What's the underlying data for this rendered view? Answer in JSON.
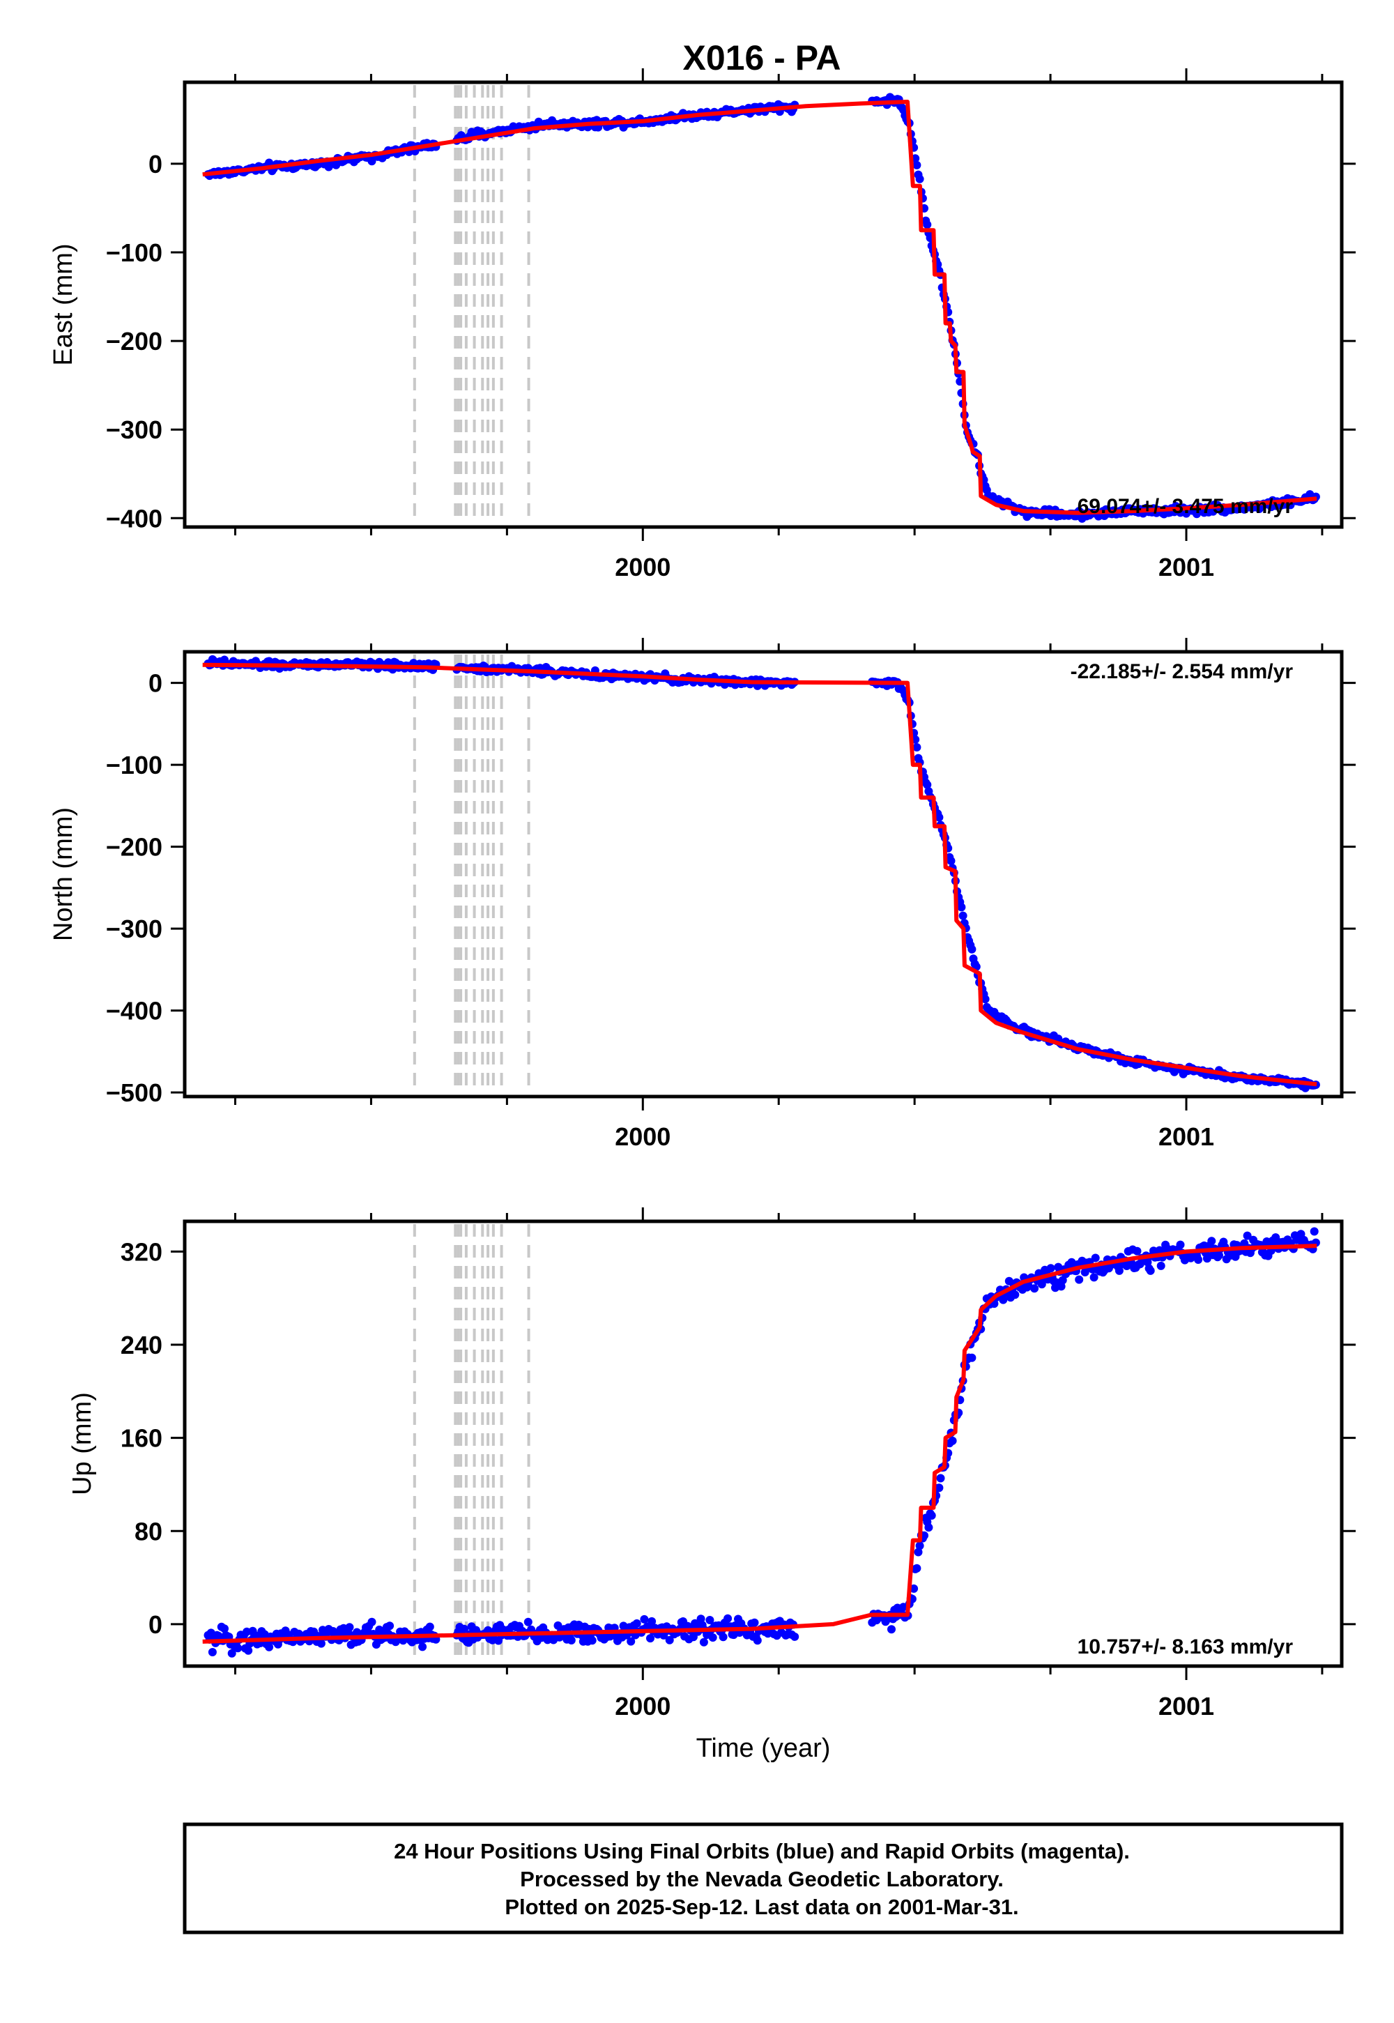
{
  "title": "X016 - PA",
  "footer": {
    "line1": "24 Hour Positions Using Final Orbits (blue) and Rapid Orbits (magenta).",
    "line2": "Processed by the Nevada Geodetic Laboratory.",
    "line3": "Plotted on 2025-Sep-12. Last data on 2001-Mar-31."
  },
  "colors": {
    "final_orbit_points": "#0000ff",
    "model_fit": "#ff0000",
    "event_lines": "#c8c8c8"
  },
  "chart_data": [
    {
      "type": "scatter",
      "component": "east",
      "ylabel": "East (mm)",
      "xlabel": "",
      "xlim": [
        1999.157,
        2001.286
      ],
      "ylim": [
        -410,
        92
      ],
      "yticks": [
        0,
        -100,
        -200,
        -300,
        -400
      ],
      "xtick_labels": [
        "2000",
        "2001"
      ],
      "rate_text": "69.074+/- 3.475 mm/yr",
      "event_lines_x": [
        1999.58,
        1999.655,
        1999.66,
        1999.665,
        1999.675,
        1999.69,
        1999.705,
        1999.715,
        1999.725,
        1999.74,
        1999.79
      ],
      "series": [
        {
          "name": "Final Orbits",
          "gaps": [
            [
              1999.62,
              1999.655
            ],
            [
              2000.28,
              2000.42
            ]
          ],
          "points": [
            [
              1999.2,
              -12
            ],
            [
              1999.3,
              -5
            ],
            [
              1999.4,
              0
            ],
            [
              1999.5,
              8
            ],
            [
              1999.6,
              20
            ],
            [
              1999.7,
              33
            ],
            [
              1999.75,
              38
            ],
            [
              1999.83,
              45
            ],
            [
              1999.9,
              45
            ],
            [
              2000.0,
              48
            ],
            [
              2000.1,
              55
            ],
            [
              2000.2,
              61
            ],
            [
              2000.28,
              64
            ],
            [
              2000.42,
              70
            ],
            [
              2000.47,
              72
            ],
            [
              2000.49,
              45
            ],
            [
              2000.51,
              -22
            ],
            [
              2000.525,
              -75
            ],
            [
              2000.545,
              -120
            ],
            [
              2000.565,
              -180
            ],
            [
              2000.58,
              -230
            ],
            [
              2000.595,
              -300
            ],
            [
              2000.615,
              -330
            ],
            [
              2000.635,
              -375
            ],
            [
              2000.7,
              -393
            ],
            [
              2000.8,
              -396
            ],
            [
              2000.9,
              -392
            ],
            [
              2001.0,
              -391
            ],
            [
              2001.1,
              -388
            ],
            [
              2001.24,
              -378
            ]
          ]
        },
        {
          "name": "Model fit",
          "points": [
            [
              1999.19,
              -12
            ],
            [
              1999.3,
              -5
            ],
            [
              1999.4,
              3
            ],
            [
              1999.5,
              10
            ],
            [
              1999.6,
              20
            ],
            [
              1999.7,
              30
            ],
            [
              1999.8,
              40
            ],
            [
              1999.9,
              45
            ],
            [
              2000.0,
              48
            ],
            [
              2000.1,
              55
            ],
            [
              2000.2,
              60
            ],
            [
              2000.3,
              65
            ],
            [
              2000.4,
              68
            ],
            [
              2000.487,
              70
            ],
            [
              2000.497,
              -25
            ],
            [
              2000.51,
              -25
            ],
            [
              2000.512,
              -75
            ],
            [
              2000.535,
              -75
            ],
            [
              2000.537,
              -125
            ],
            [
              2000.555,
              -125
            ],
            [
              2000.557,
              -180
            ],
            [
              2000.565,
              -180
            ],
            [
              2000.567,
              -200
            ],
            [
              2000.575,
              -205
            ],
            [
              2000.577,
              -235
            ],
            [
              2000.59,
              -235
            ],
            [
              2000.592,
              -295
            ],
            [
              2000.605,
              -320
            ],
            [
              2000.607,
              -325
            ],
            [
              2000.62,
              -330
            ],
            [
              2000.622,
              -375
            ],
            [
              2000.65,
              -385
            ],
            [
              2000.7,
              -392
            ],
            [
              2000.8,
              -394
            ],
            [
              2000.9,
              -392
            ],
            [
              2001.0,
              -389
            ],
            [
              2001.1,
              -385
            ],
            [
              2001.24,
              -378
            ]
          ]
        }
      ]
    },
    {
      "type": "scatter",
      "component": "north",
      "ylabel": "North (mm)",
      "xlabel": "",
      "xlim": [
        1999.157,
        2001.286
      ],
      "ylim": [
        -505,
        38
      ],
      "yticks": [
        0,
        -100,
        -200,
        -300,
        -400,
        -500
      ],
      "xtick_labels": [
        "2000",
        "2001"
      ],
      "rate_text": "-22.185+/- 2.554 mm/yr",
      "event_lines_x": [
        1999.58,
        1999.655,
        1999.66,
        1999.665,
        1999.675,
        1999.69,
        1999.705,
        1999.715,
        1999.725,
        1999.74,
        1999.79
      ],
      "series": [
        {
          "name": "Final Orbits",
          "gaps": [
            [
              1999.62,
              1999.655
            ],
            [
              2000.28,
              2000.42
            ]
          ],
          "points": [
            [
              1999.2,
              24
            ],
            [
              1999.3,
              22
            ],
            [
              1999.4,
              22
            ],
            [
              1999.5,
              22
            ],
            [
              1999.6,
              20
            ],
            [
              1999.7,
              18
            ],
            [
              1999.8,
              15
            ],
            [
              1999.9,
              10
            ],
            [
              2000.0,
              7
            ],
            [
              2000.1,
              3
            ],
            [
              2000.2,
              1
            ],
            [
              2000.28,
              0
            ],
            [
              2000.42,
              0
            ],
            [
              2000.47,
              0
            ],
            [
              2000.49,
              -25
            ],
            [
              2000.51,
              -100
            ],
            [
              2000.53,
              -140
            ],
            [
              2000.55,
              -175
            ],
            [
              2000.57,
              -225
            ],
            [
              2000.59,
              -290
            ],
            [
              2000.61,
              -340
            ],
            [
              2000.635,
              -400
            ],
            [
              2000.7,
              -425
            ],
            [
              2000.8,
              -445
            ],
            [
              2000.9,
              -462
            ],
            [
              2001.0,
              -472
            ],
            [
              2001.1,
              -482
            ],
            [
              2001.24,
              -490
            ]
          ]
        },
        {
          "name": "Model fit",
          "points": [
            [
              1999.19,
              22
            ],
            [
              1999.4,
              21
            ],
            [
              1999.6,
              19
            ],
            [
              1999.8,
              14
            ],
            [
              2000.0,
              8
            ],
            [
              2000.1,
              4
            ],
            [
              2000.2,
              1
            ],
            [
              2000.487,
              0
            ],
            [
              2000.497,
              -100
            ],
            [
              2000.51,
              -100
            ],
            [
              2000.512,
              -140
            ],
            [
              2000.535,
              -140
            ],
            [
              2000.537,
              -175
            ],
            [
              2000.555,
              -175
            ],
            [
              2000.557,
              -225
            ],
            [
              2000.575,
              -230
            ],
            [
              2000.577,
              -290
            ],
            [
              2000.59,
              -300
            ],
            [
              2000.592,
              -345
            ],
            [
              2000.62,
              -355
            ],
            [
              2000.622,
              -400
            ],
            [
              2000.65,
              -415
            ],
            [
              2000.7,
              -427
            ],
            [
              2000.8,
              -447
            ],
            [
              2000.9,
              -460
            ],
            [
              2001.0,
              -470
            ],
            [
              2001.1,
              -480
            ],
            [
              2001.24,
              -490
            ]
          ]
        }
      ]
    },
    {
      "type": "scatter",
      "component": "up",
      "ylabel": "Up (mm)",
      "xlabel": "Time (year)",
      "xlim": [
        1999.157,
        2001.286
      ],
      "ylim": [
        -36,
        346
      ],
      "yticks": [
        0,
        80,
        160,
        240,
        320
      ],
      "xtick_labels": [
        "2000",
        "2001"
      ],
      "rate_text": "10.757+/- 8.163 mm/yr",
      "event_lines_x": [
        1999.58,
        1999.655,
        1999.66,
        1999.665,
        1999.675,
        1999.69,
        1999.705,
        1999.715,
        1999.725,
        1999.74,
        1999.79
      ],
      "series": [
        {
          "name": "Final Orbits",
          "gaps": [
            [
              1999.62,
              1999.655
            ],
            [
              2000.28,
              2000.42
            ]
          ],
          "points": [
            [
              1999.2,
              -15
            ],
            [
              1999.3,
              -12
            ],
            [
              1999.4,
              -10
            ],
            [
              1999.5,
              -9
            ],
            [
              1999.6,
              -10
            ],
            [
              1999.7,
              -9
            ],
            [
              1999.8,
              -8
            ],
            [
              1999.9,
              -8
            ],
            [
              2000.0,
              -6
            ],
            [
              2000.1,
              -5
            ],
            [
              2000.2,
              -4
            ],
            [
              2000.28,
              -3
            ],
            [
              2000.42,
              5
            ],
            [
              2000.47,
              5
            ],
            [
              2000.49,
              10
            ],
            [
              2000.51,
              70
            ],
            [
              2000.53,
              95
            ],
            [
              2000.55,
              130
            ],
            [
              2000.57,
              165
            ],
            [
              2000.59,
              210
            ],
            [
              2000.61,
              245
            ],
            [
              2000.635,
              275
            ],
            [
              2000.7,
              295
            ],
            [
              2000.8,
              304
            ],
            [
              2000.9,
              312
            ],
            [
              2001.0,
              318
            ],
            [
              2001.1,
              322
            ],
            [
              2001.24,
              328
            ]
          ]
        },
        {
          "name": "Model fit",
          "points": [
            [
              1999.19,
              -15
            ],
            [
              1999.4,
              -12
            ],
            [
              1999.6,
              -10
            ],
            [
              1999.8,
              -8
            ],
            [
              2000.0,
              -6
            ],
            [
              2000.2,
              -4
            ],
            [
              2000.35,
              0
            ],
            [
              2000.42,
              8
            ],
            [
              2000.487,
              8
            ],
            [
              2000.497,
              72
            ],
            [
              2000.51,
              72
            ],
            [
              2000.512,
              100
            ],
            [
              2000.535,
              100
            ],
            [
              2000.537,
              130
            ],
            [
              2000.555,
              135
            ],
            [
              2000.557,
              160
            ],
            [
              2000.575,
              165
            ],
            [
              2000.577,
              195
            ],
            [
              2000.59,
              210
            ],
            [
              2000.592,
              235
            ],
            [
              2000.62,
              255
            ],
            [
              2000.622,
              270
            ],
            [
              2000.65,
              282
            ],
            [
              2000.7,
              294
            ],
            [
              2000.8,
              306
            ],
            [
              2000.9,
              314
            ],
            [
              2001.0,
              320
            ],
            [
              2001.1,
              323
            ],
            [
              2001.24,
              325
            ]
          ]
        }
      ]
    }
  ]
}
